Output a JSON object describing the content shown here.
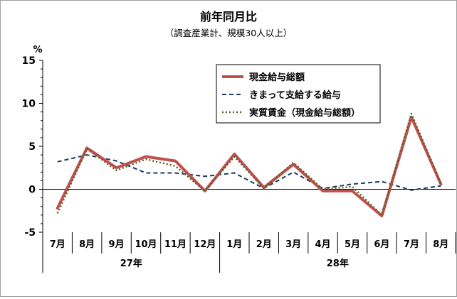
{
  "chart_data": {
    "type": "line",
    "title": "前年同月比",
    "subtitle": "（調査産業計、規模30人以上）",
    "ylabel": "%",
    "ylim": [
      -5,
      15
    ],
    "yticks": [
      -5,
      0,
      5,
      10,
      15
    ],
    "grid": false,
    "legend_position": "top-center",
    "categories": [
      "7月",
      "8月",
      "9月",
      "10月",
      "11月",
      "12月",
      "1月",
      "2月",
      "3月",
      "4月",
      "5月",
      "6月",
      "7月",
      "8月"
    ],
    "year_groups": [
      {
        "label": "27年",
        "start": 0,
        "end": 5
      },
      {
        "label": "28年",
        "start": 6,
        "end": 13
      }
    ],
    "series": [
      {
        "name": "現金給与総額",
        "color": "#c0504d",
        "style": "solid",
        "values": [
          -2.2,
          4.8,
          2.5,
          3.8,
          3.3,
          -0.2,
          4.1,
          0.2,
          2.9,
          -0.2,
          -0.2,
          -3.1,
          8.4,
          0.6
        ]
      },
      {
        "name": "きまって支給する給与",
        "color": "#1f3864",
        "style": "dash",
        "values": [
          3.2,
          4.0,
          3.3,
          1.9,
          1.9,
          1.5,
          1.9,
          0.1,
          2.0,
          0.1,
          0.6,
          0.9,
          -0.1,
          0.4
        ]
      },
      {
        "name": "実質賃金（現金給与総額）",
        "color": "#4f6228",
        "style": "dot",
        "values": [
          -2.8,
          4.7,
          2.2,
          3.5,
          2.7,
          -0.2,
          3.8,
          0.1,
          3.1,
          0.0,
          0.3,
          -3.0,
          8.8,
          0.7
        ]
      }
    ]
  }
}
